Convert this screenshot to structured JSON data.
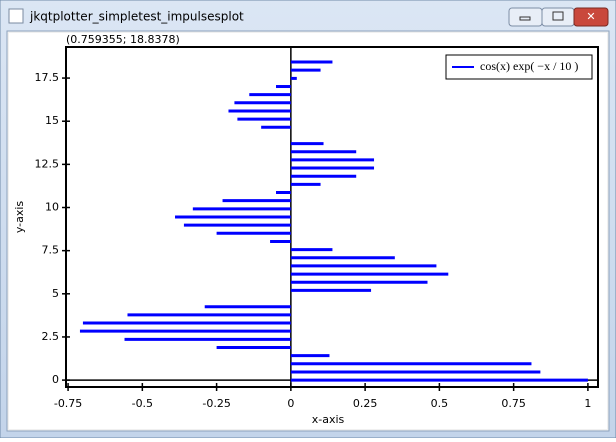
{
  "window": {
    "title": "jkqtplotter_simpletest_impulsesplot",
    "status": "(0.759355; 18.8378)"
  },
  "chart_data": {
    "type": "impulses",
    "orientation": "horizontal",
    "x_label": "x-axis",
    "y_label": "y-axis",
    "y": [
      0,
      0.47,
      0.95,
      1.42,
      1.89,
      2.36,
      2.84,
      3.31,
      3.78,
      4.25,
      4.73,
      5.2,
      5.67,
      6.14,
      6.62,
      7.09,
      7.56,
      8.03,
      8.51,
      8.98,
      9.45,
      9.92,
      10.4,
      10.87,
      11.34,
      11.81,
      12.29,
      12.76,
      13.23,
      13.7,
      14.18,
      14.65,
      15.12,
      15.59,
      16.07,
      16.54,
      17.01,
      17.48,
      17.96,
      18.43
    ],
    "series": [
      {
        "name": "cos(x) exp( −x / 10 )",
        "color": "#0000ff",
        "values": [
          1.0,
          0.84,
          0.81,
          0.13,
          -0.25,
          -0.56,
          -0.71,
          -0.7,
          -0.55,
          -0.29,
          0,
          0.27,
          0.46,
          0.53,
          0.49,
          0.35,
          0.14,
          -0.07,
          -0.25,
          -0.36,
          -0.39,
          -0.33,
          -0.23,
          -0.05,
          0.1,
          0.22,
          0.28,
          0.28,
          0.22,
          0.11,
          0,
          -0.1,
          -0.18,
          -0.21,
          -0.19,
          -0.14,
          -0.05,
          0.02,
          0.1,
          0.14
        ]
      }
    ],
    "xlim": [
      -0.757,
      1.034
    ],
    "ylim": [
      -0.4,
      19.3
    ],
    "xticks": [
      -0.75,
      -0.5,
      -0.25,
      0,
      0.25,
      0.5,
      0.75,
      1
    ],
    "yticks": [
      0,
      2.5,
      5,
      7.5,
      10,
      12.5,
      15,
      17.5
    ],
    "legend": "top-right",
    "grid": false
  }
}
